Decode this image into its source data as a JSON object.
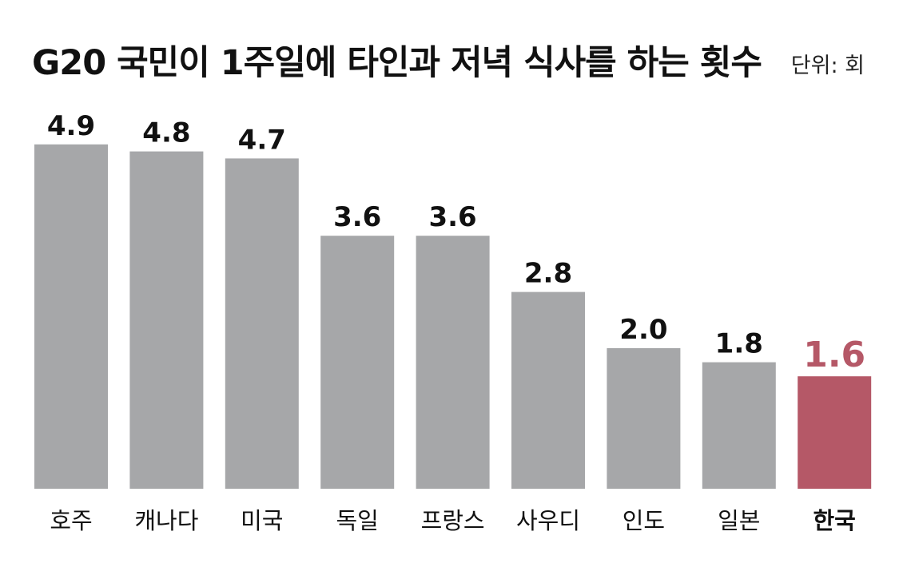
{
  "title": "G20 국민이 1주일에 타인과 저녁 식사를 하는 횟수",
  "unit_label": "단위: 회",
  "colors": {
    "bar_default": "#a6a7a9",
    "bar_highlight": "#b55867",
    "label_default": "#111111",
    "label_highlight": "#b55867"
  },
  "chart_data": {
    "type": "bar",
    "title": "G20 국민이 1주일에 타인과 저녁 식사를 하는 횟수",
    "unit": "단위: 회",
    "categories": [
      "호주",
      "캐나다",
      "미국",
      "독일",
      "프랑스",
      "사우디",
      "인도",
      "일본",
      "한국"
    ],
    "values": [
      4.9,
      4.8,
      4.7,
      3.6,
      3.6,
      2.8,
      2.0,
      1.8,
      1.6
    ],
    "value_labels": [
      "4.9",
      "4.8",
      "4.7",
      "3.6",
      "3.6",
      "2.8",
      "2.0",
      "1.8",
      "1.6"
    ],
    "highlight_category": "한국",
    "xlabel": "",
    "ylabel": "",
    "grid": false,
    "legend": "none"
  }
}
